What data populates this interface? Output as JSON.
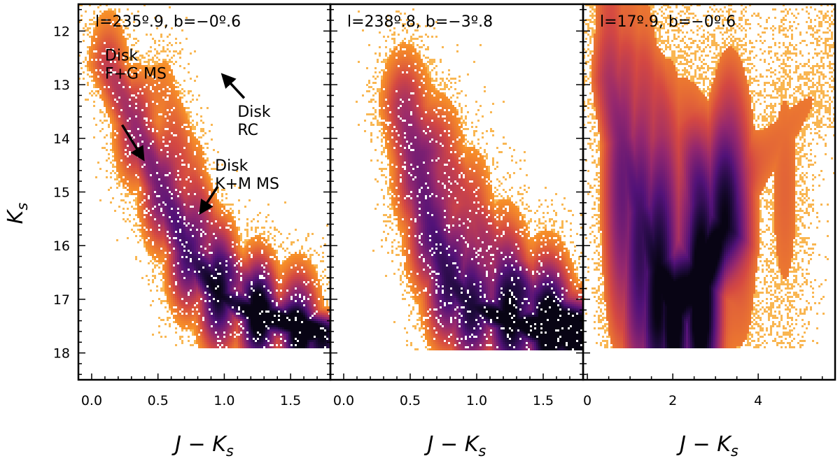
{
  "chart_data": {
    "type": "scatter",
    "subtype": "2d-density (Hess diagram)",
    "colormap": "inferno",
    "ylabel": "K_s",
    "ylabel_base": "K",
    "ylabel_sub": "s",
    "xlabel": "J − K_s",
    "xlabel_main": "J − K",
    "xlabel_sub": "s",
    "ylim": [
      18.5,
      11.5
    ],
    "yticks": [
      12,
      13,
      14,
      15,
      16,
      17,
      18
    ],
    "ytick_labels": [
      "12",
      "13",
      "14",
      "15",
      "16",
      "17",
      "18"
    ],
    "panels": [
      {
        "title": "l=235º.9, b=−0º.6",
        "xlim": [
          -0.1,
          1.8
        ],
        "xticks": [
          0.0,
          0.5,
          1.0,
          1.5
        ],
        "xtick_labels": [
          "0.0",
          "0.5",
          "1.0",
          "1.5"
        ],
        "xminor": 0.1,
        "density": {
          "components": [
            {
              "x": [
                0.12,
                0.32,
                0.52,
                0.72,
                0.95,
                1.25,
                1.55,
                1.75
              ],
              "y": [
                12.6,
                13.7,
                14.9,
                16.1,
                16.9,
                17.3,
                17.5,
                17.6
              ],
              "width": 0.14,
              "weight": 1.0
            },
            {
              "x": [
                0.55,
                0.75,
                0.95,
                1.25,
                1.6
              ],
              "y": [
                13.0,
                14.6,
                16.1,
                17.0,
                17.5
              ],
              "width": 0.12,
              "weight": 0.35
            }
          ],
          "background": 0.12,
          "ymax": 17.9
        },
        "annotations": [
          {
            "lines": [
              "Disk",
              "F+G MS"
            ],
            "text_at": [
              0.1,
              12.55
            ],
            "arrow_from": [
              0.23,
              13.75
            ],
            "arrow_to": [
              0.38,
              14.35
            ]
          },
          {
            "lines": [
              "Disk",
              "RC"
            ],
            "text_at": [
              1.1,
              13.6
            ],
            "arrow_from": [
              1.15,
              13.25
            ],
            "arrow_to": [
              1.0,
              12.85
            ]
          },
          {
            "lines": [
              "Disk",
              "K+M MS"
            ],
            "text_at": [
              0.93,
              14.6
            ],
            "arrow_from": [
              0.95,
              14.9
            ],
            "arrow_to": [
              0.83,
              15.35
            ]
          }
        ]
      },
      {
        "title": "l=238º.8, b=−3º.8",
        "xlim": [
          -0.1,
          1.8
        ],
        "xticks": [
          0.0,
          0.5,
          1.0,
          1.5
        ],
        "xtick_labels": [
          "0.0",
          "0.5",
          "1.0",
          "1.5"
        ],
        "xminor": 0.1,
        "density": {
          "components": [
            {
              "x": [
                0.45,
                0.55,
                0.65,
                0.78,
                0.95,
                1.25,
                1.55,
                1.8
              ],
              "y": [
                13.4,
                14.5,
                15.6,
                16.6,
                17.1,
                17.4,
                17.6,
                17.65
              ],
              "width": 0.16,
              "weight": 1.0
            },
            {
              "x": [
                0.75,
                0.95,
                1.2,
                1.5,
                1.8
              ],
              "y": [
                14.2,
                15.2,
                16.3,
                17.1,
                17.5
              ],
              "width": 0.16,
              "weight": 0.45
            }
          ],
          "background": 0.12,
          "ymax": 17.95
        },
        "annotations": []
      },
      {
        "title": "l=17º.9, b=−0º.6",
        "xlim": [
          -0.1,
          5.8
        ],
        "xticks": [
          0,
          2,
          4
        ],
        "xtick_labels": [
          "0",
          "2",
          "4"
        ],
        "xminor": 0.5,
        "density": {
          "components": [
            {
              "x": [
                0.5,
                0.8,
                1.2,
                1.6,
                2.0,
                2.6,
                3.2
              ],
              "y": [
                12.8,
                14.0,
                15.3,
                16.4,
                17.0,
                16.6,
                15.6
              ],
              "width": 0.45,
              "weight": 1.0
            },
            {
              "x": [
                1.4,
                2.0,
                2.8,
                3.6,
                4.6,
                5.6
              ],
              "y": [
                12.3,
                13.8,
                15.0,
                14.7,
                13.8,
                12.8
              ],
              "width": 0.5,
              "weight": 0.35
            }
          ],
          "background": 0.18,
          "ymax": 17.9
        },
        "annotations": []
      }
    ]
  }
}
